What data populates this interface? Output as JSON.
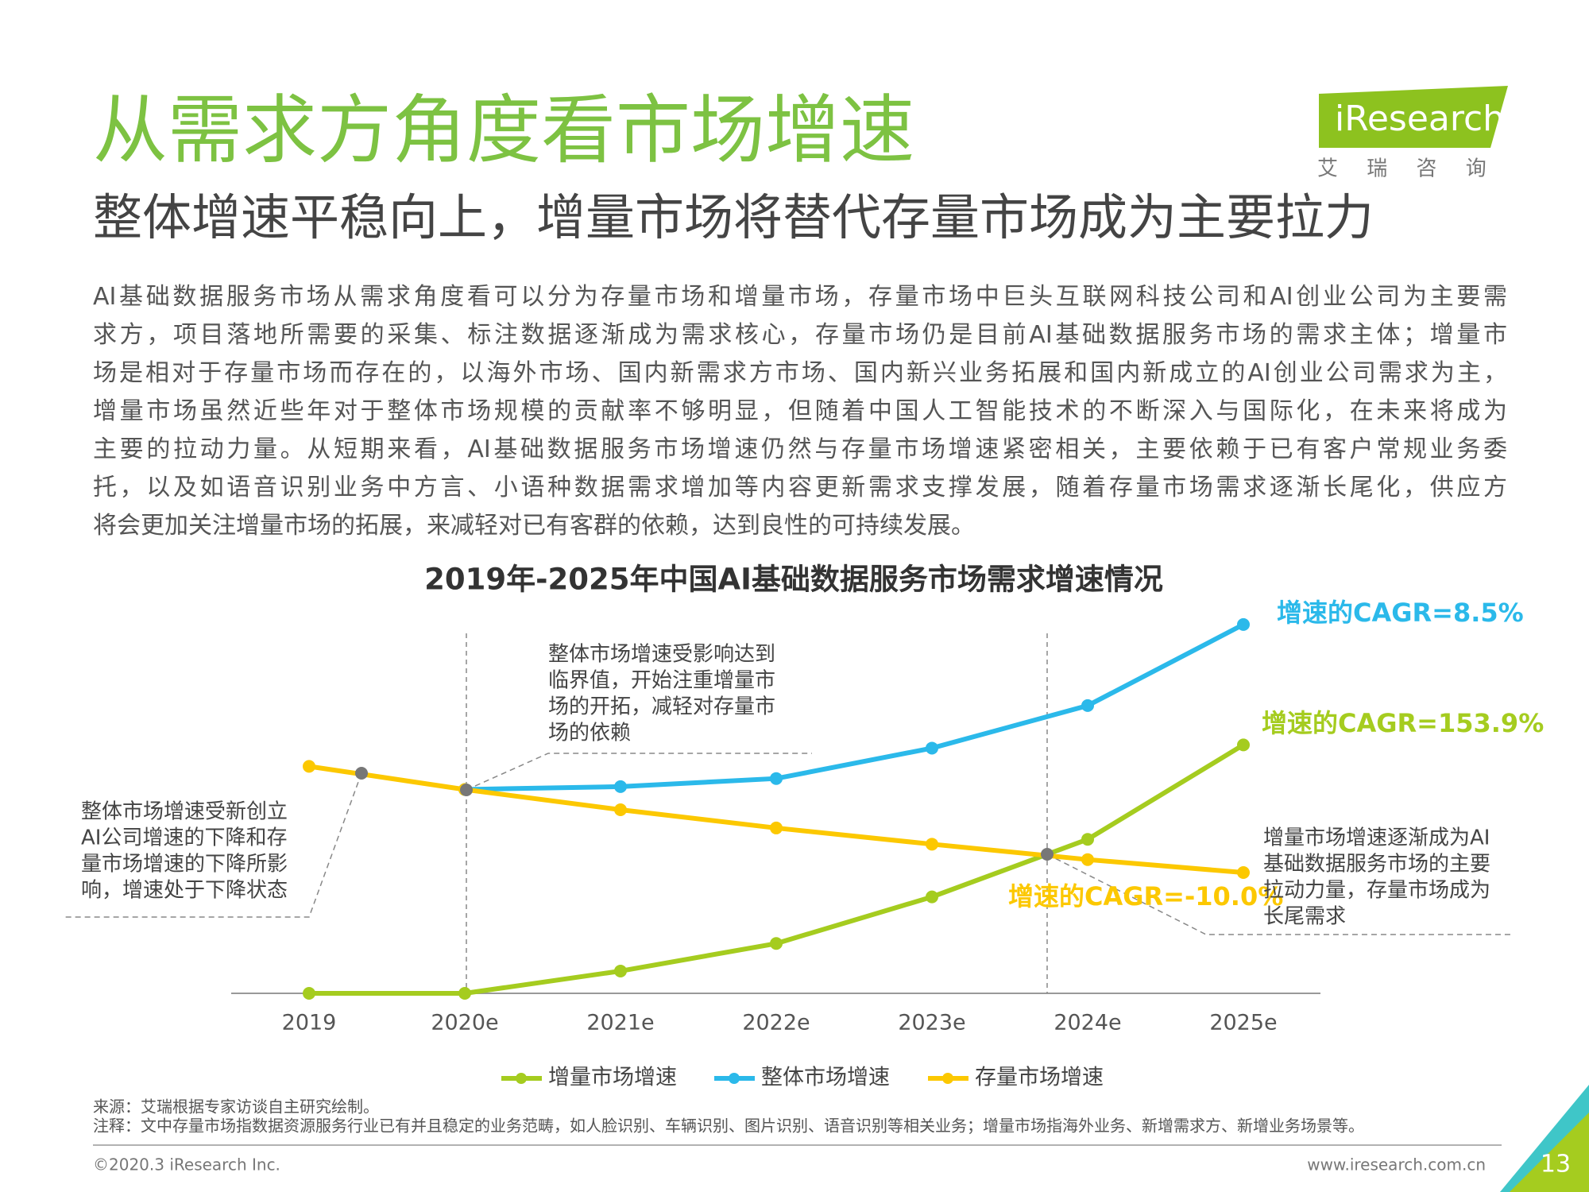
{
  "slide": {
    "title": "从需求方角度看市场增速",
    "subtitle": "整体增速平稳向上，增量市场将替代存量市场成为主要拉力",
    "paragraph": [
      "AI基础数据服务市场从需求角度看可以分为存量市场和增量市场，存量市场中巨头互联网科技公司和AI创业公司为主要需",
      "求方，项目落地所需要的采集、标注数据逐渐成为需求核心，存量市场仍是目前AI基础数据服务市场的需求主体；增量市",
      "场是相对于存量市场而存在的，以海外市场、国内新需求方市场、国内新兴业务拓展和国内新成立的AI创业公司需求为主，",
      "增量市场虽然近些年对于整体市场规模的贡献率不够明显，但随着中国人工智能技术的不断深入与国际化，在未来将成为",
      "主要的拉动力量。从短期来看，AI基础数据服务市场增速仍然与存量市场增速紧密相关，主要依赖于已有客户常规业务委",
      "托，以及如语音识别业务中方言、小语种数据需求增加等内容更新需求支撑发展，随着存量市场需求逐渐长尾化，供应方",
      "将会更加关注增量市场的拓展，来减轻对已有客群的依赖，达到良性的可持续发展。"
    ]
  },
  "logo": {
    "brand": "iResearch",
    "chinese": "艾 瑞 咨 询"
  },
  "chart_data": {
    "type": "line",
    "title": "2019年-2025年中国AI基础数据服务市场需求增速情况",
    "categories": [
      "2019",
      "2020e",
      "2021e",
      "2022e",
      "2023e",
      "2024e",
      "2025e"
    ],
    "series": [
      {
        "name": "增量市场增速",
        "color": "#a5cc1f",
        "values": [
          0,
          0,
          5.5,
          12.3,
          23.8,
          38,
          61.3
        ]
      },
      {
        "name": "整体市场增速",
        "color": "#2bb9ea",
        "values": [
          null,
          50.3,
          51,
          53,
          60.5,
          71,
          91
        ]
      },
      {
        "name": "存量市场增速",
        "color": "#fcc800",
        "values": [
          56,
          50.3,
          45.3,
          40.8,
          36.8,
          33,
          29.8
        ]
      }
    ],
    "ylim": [
      0,
      100
    ],
    "cagr_labels": [
      "增速的CAGR=153.9%",
      "增速的CAGR=8.5%",
      "增速的CAGR=-10.0%"
    ],
    "annotations": [
      [
        "整体市场增速受新创立",
        "AI公司增速的下降和存",
        "量市场增速的下降所影",
        "响，增速处于下降状态"
      ],
      [
        "整体市场增速受影响达到",
        "临界值，开始注重增量市",
        "场的开拓，减轻对存量市",
        "场的依赖"
      ],
      [
        "增量市场增速逐渐成为AI",
        "基础数据服务市场的主要",
        "拉动力量，存量市场成为",
        "长尾需求"
      ]
    ]
  },
  "footer": {
    "source": "来源：艾瑞根据专家访谈自主研究绘制。",
    "note": "注释：文中存量市场指数据资源服务行业已有并且稳定的业务范畴，如人脸识别、车辆识别、图片识别、语音识别等相关业务；增量市场指海外业务、新增需求方、新增业务场景等。",
    "copyright": "©2020.3 iResearch Inc.",
    "url": "www.iresearch.com.cn",
    "page": "13"
  }
}
